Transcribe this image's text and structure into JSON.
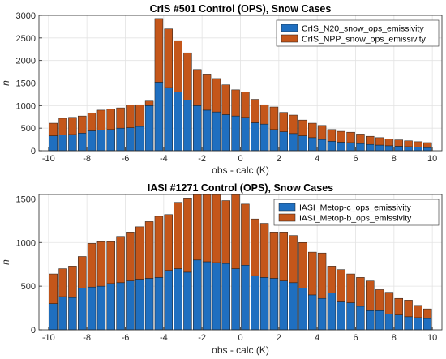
{
  "chart_data": [
    {
      "type": "bar",
      "stacked": true,
      "title": "CrIS #501 Control (OPS), Snow Cases",
      "xlabel": "obs - calc (K)",
      "ylabel": "n",
      "xlim": [
        -10.5,
        10.5
      ],
      "ylim": [
        0,
        3000
      ],
      "xticks": [
        -10,
        -8,
        -6,
        -4,
        -2,
        0,
        2,
        4,
        6,
        8,
        10
      ],
      "xtick_labels": [
        "-10",
        "-8",
        "-6",
        "-4",
        "-2",
        "0",
        "2",
        "4",
        "6",
        "8",
        "10"
      ],
      "yticks": [
        0,
        500,
        1000,
        1500,
        2000,
        2500,
        3000
      ],
      "ytick_labels": [
        "0",
        "500",
        "1000",
        "1500",
        "2000",
        "2500",
        "3000"
      ],
      "grid": true,
      "legend_position": "top-right",
      "x": [
        -9.75,
        -9.25,
        -8.75,
        -8.25,
        -7.75,
        -7.25,
        -6.75,
        -6.25,
        -5.75,
        -5.25,
        -4.75,
        -4.25,
        -3.75,
        -3.25,
        -2.75,
        -2.25,
        -1.75,
        -1.25,
        -0.75,
        -0.25,
        0.25,
        0.75,
        1.25,
        1.75,
        2.25,
        2.75,
        3.25,
        3.75,
        4.25,
        4.75,
        5.25,
        5.75,
        6.25,
        6.75,
        7.25,
        7.75,
        8.25,
        8.75,
        9.25,
        9.75
      ],
      "series": [
        {
          "name": "CrIS_N20_snow_ops_emissivity",
          "color": "#1f6fc0",
          "values": [
            330,
            350,
            360,
            390,
            440,
            460,
            470,
            500,
            510,
            540,
            1000,
            1520,
            1400,
            1300,
            1120,
            1000,
            900,
            860,
            800,
            770,
            740,
            620,
            590,
            470,
            420,
            380,
            330,
            290,
            250,
            210,
            190,
            180,
            160,
            140,
            125,
            110,
            100,
            90,
            80,
            70
          ]
        },
        {
          "name": "CrIS_NPP_snow_ops_emissivity",
          "color": "#c4561a",
          "values": [
            280,
            370,
            380,
            380,
            400,
            440,
            450,
            450,
            500,
            480,
            100,
            1410,
            1300,
            1140,
            1050,
            800,
            800,
            740,
            660,
            580,
            560,
            520,
            430,
            500,
            430,
            410,
            350,
            320,
            310,
            260,
            240,
            230,
            210,
            180,
            165,
            150,
            140,
            130,
            120,
            110
          ]
        }
      ]
    },
    {
      "type": "bar",
      "stacked": true,
      "title": "IASI #1271 Control (OPS), Snow Cases",
      "xlabel": "obs - calc (K)",
      "ylabel": "n",
      "xlim": [
        -10.5,
        10.5
      ],
      "ylim": [
        0,
        1550
      ],
      "xticks": [
        -10,
        -8,
        -6,
        -4,
        -2,
        0,
        2,
        4,
        6,
        8,
        10
      ],
      "xtick_labels": [
        "-10",
        "-8",
        "-6",
        "-4",
        "-2",
        "0",
        "2",
        "4",
        "6",
        "8",
        "10"
      ],
      "yticks": [
        0,
        500,
        1000,
        1500
      ],
      "ytick_labels": [
        "0",
        "500",
        "1000",
        "1500"
      ],
      "grid": true,
      "legend_position": "top-right",
      "x": [
        -9.75,
        -9.25,
        -8.75,
        -8.25,
        -7.75,
        -7.25,
        -6.75,
        -6.25,
        -5.75,
        -5.25,
        -4.75,
        -4.25,
        -3.75,
        -3.25,
        -2.75,
        -2.25,
        -1.75,
        -1.25,
        -0.75,
        -0.25,
        0.25,
        0.75,
        1.25,
        1.75,
        2.25,
        2.75,
        3.25,
        3.75,
        4.25,
        4.75,
        5.25,
        5.75,
        6.25,
        6.75,
        7.25,
        7.75,
        8.25,
        8.75,
        9.25,
        9.75
      ],
      "series": [
        {
          "name": "IASI_Metop-c_ops_emissivity",
          "color": "#1f6fc0",
          "values": [
            300,
            380,
            370,
            480,
            490,
            500,
            530,
            540,
            560,
            580,
            590,
            600,
            680,
            700,
            660,
            800,
            780,
            770,
            760,
            700,
            740,
            620,
            600,
            590,
            560,
            540,
            480,
            400,
            360,
            420,
            320,
            310,
            270,
            220,
            220,
            180,
            170,
            150,
            140,
            130
          ]
        },
        {
          "name": "IASI_Metop-b_ops_emissivity",
          "color": "#c4561a",
          "values": [
            340,
            320,
            360,
            360,
            500,
            510,
            480,
            530,
            560,
            600,
            650,
            700,
            640,
            760,
            850,
            780,
            800,
            840,
            720,
            860,
            700,
            650,
            620,
            530,
            560,
            540,
            520,
            490,
            520,
            310,
            370,
            330,
            330,
            340,
            240,
            250,
            190,
            190,
            140,
            110
          ]
        }
      ]
    }
  ]
}
